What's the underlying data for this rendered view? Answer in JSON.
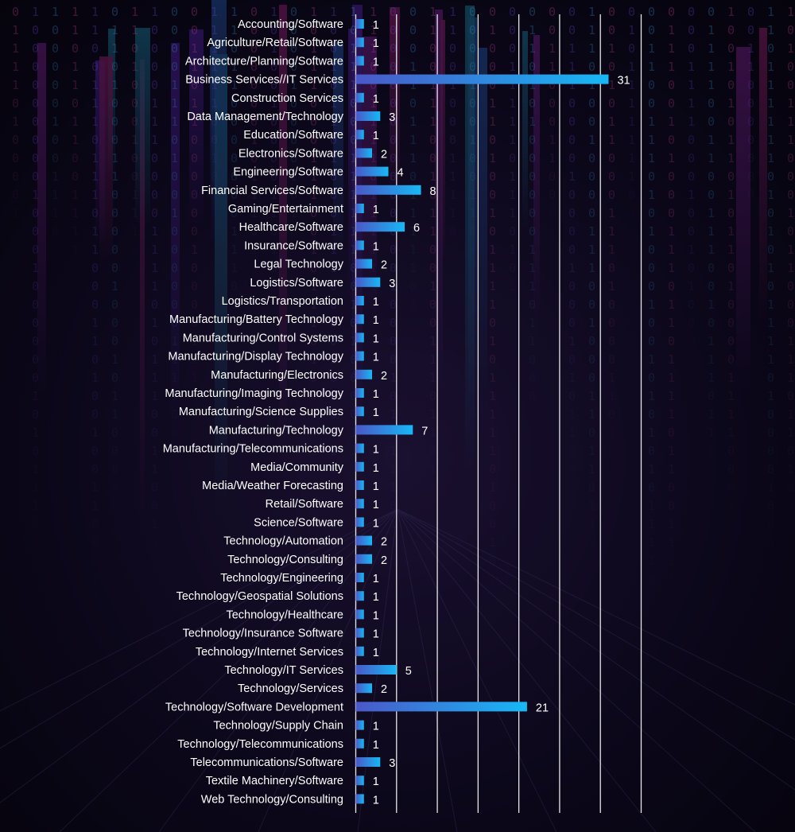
{
  "chart_data": {
    "type": "bar",
    "orientation": "horizontal",
    "grid": true,
    "bar_gradient": [
      "#4a58c8",
      "#17b8f5"
    ],
    "label_color": "#ffffff",
    "grid_color": "#ffffff",
    "categories": [
      "Accounting/Software",
      "Agriculture/Retail/Software",
      "Architecture/Planning/Software",
      "Business Services//IT Services",
      "Construction Services",
      "Data Management/Technology",
      "Education/Software",
      "Electronics/Software",
      "Engineering/Software",
      "Financial Services/Software",
      "Gaming/Entertainment",
      "Healthcare/Software",
      "Insurance/Software",
      "Legal Technology",
      "Logistics/Software",
      "Logistics/Transportation",
      "Manufacturing/Battery Technology",
      "Manufacturing/Control Systems",
      "Manufacturing/Display Technology",
      "Manufacturing/Electronics",
      "Manufacturing/Imaging Technology",
      "Manufacturing/Science Supplies",
      "Manufacturing/Technology",
      "Manufacturing/Telecommunications",
      "Media/Community",
      "Media/Weather Forecasting",
      "Retail/Software",
      "Science/Software",
      "Technology/Automation",
      "Technology/Consulting",
      "Technology/Engineering",
      "Technology/Geospatial Solutions",
      "Technology/Healthcare",
      "Technology/Insurance Software",
      "Technology/Internet Services",
      "Technology/IT Services",
      "Technology/Services",
      "Technology/Software Development",
      "Technology/Supply Chain",
      "Technology/Telecommunications",
      "Telecommunications/Software",
      "Textile Machinery/Software",
      "Web Technology/Consulting"
    ],
    "values": [
      1,
      1,
      1,
      31,
      1,
      3,
      1,
      2,
      4,
      8,
      1,
      6,
      1,
      2,
      3,
      1,
      1,
      1,
      1,
      2,
      1,
      1,
      7,
      1,
      1,
      1,
      1,
      1,
      2,
      2,
      1,
      1,
      1,
      1,
      1,
      5,
      2,
      21,
      1,
      1,
      3,
      1,
      1
    ],
    "xlim": [
      0,
      35
    ]
  }
}
